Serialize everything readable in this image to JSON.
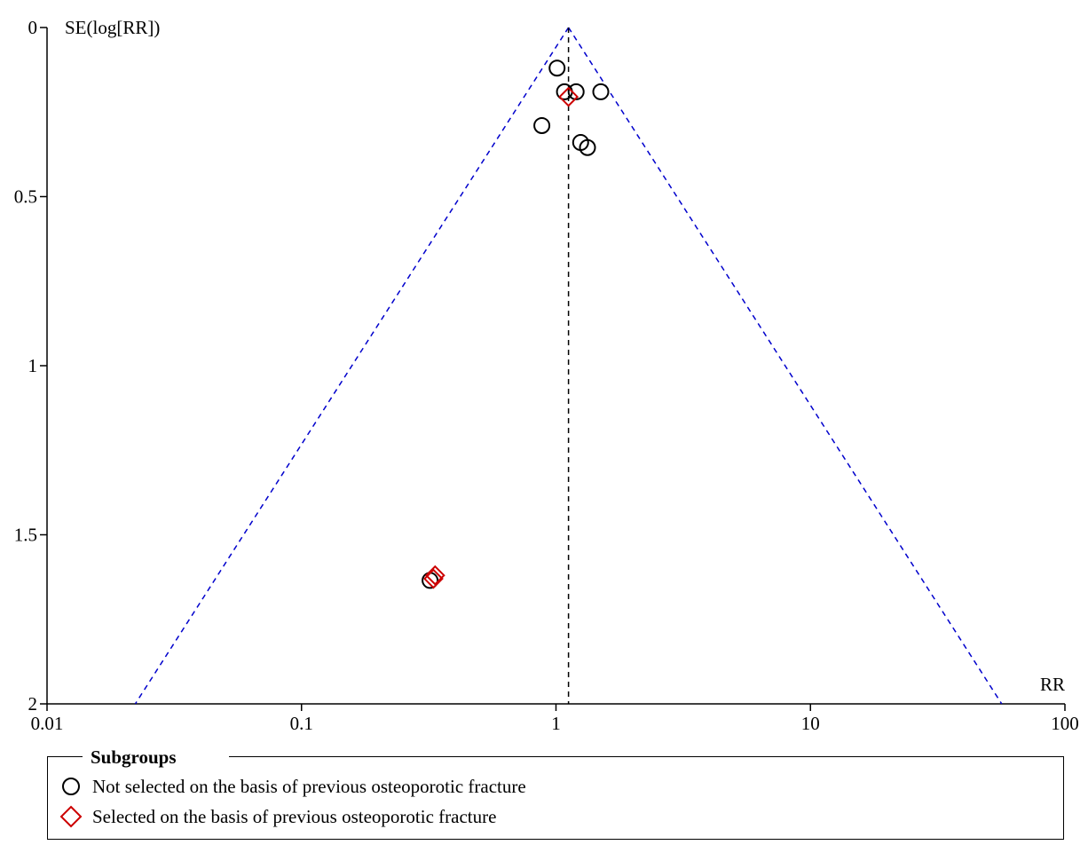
{
  "chart_data": {
    "type": "scatter",
    "title": "",
    "xlabel": "RR",
    "ylabel": "SE(log[RR])",
    "x_scale": "log",
    "xlim": [
      0.01,
      100
    ],
    "ylim": [
      0,
      2
    ],
    "y_inverted": true,
    "x_ticks": [
      "0.01",
      "0.1",
      "1",
      "10",
      "100"
    ],
    "y_ticks": [
      "0",
      "0.5",
      "1",
      "1.5",
      "2"
    ],
    "pooled_estimate": 1.12,
    "funnel_color": "#0000cc",
    "series": [
      {
        "name": "Not selected on the basis of previous osteoporotic fracture",
        "marker": "circle",
        "color": "#000000",
        "points": [
          {
            "x": 1.01,
            "y": 0.12
          },
          {
            "x": 1.08,
            "y": 0.19
          },
          {
            "x": 1.2,
            "y": 0.19
          },
          {
            "x": 1.5,
            "y": 0.19
          },
          {
            "x": 0.88,
            "y": 0.29
          },
          {
            "x": 1.25,
            "y": 0.34
          },
          {
            "x": 1.33,
            "y": 0.355
          },
          {
            "x": 0.32,
            "y": 1.635
          }
        ]
      },
      {
        "name": "Selected on the basis of previous osteoporotic fracture",
        "marker": "diamond",
        "color": "#cc0000",
        "points": [
          {
            "x": 1.12,
            "y": 0.205
          },
          {
            "x": 0.335,
            "y": 1.62
          },
          {
            "x": 0.33,
            "y": 1.63
          }
        ]
      }
    ]
  },
  "legend": {
    "title": "Subgroups",
    "items": [
      {
        "label": "Not selected on the basis of previous osteoporotic fracture",
        "marker": "circle",
        "color": "#000000"
      },
      {
        "label": "Selected on the basis of previous osteoporotic fracture",
        "marker": "diamond",
        "color": "#cc0000"
      }
    ]
  }
}
